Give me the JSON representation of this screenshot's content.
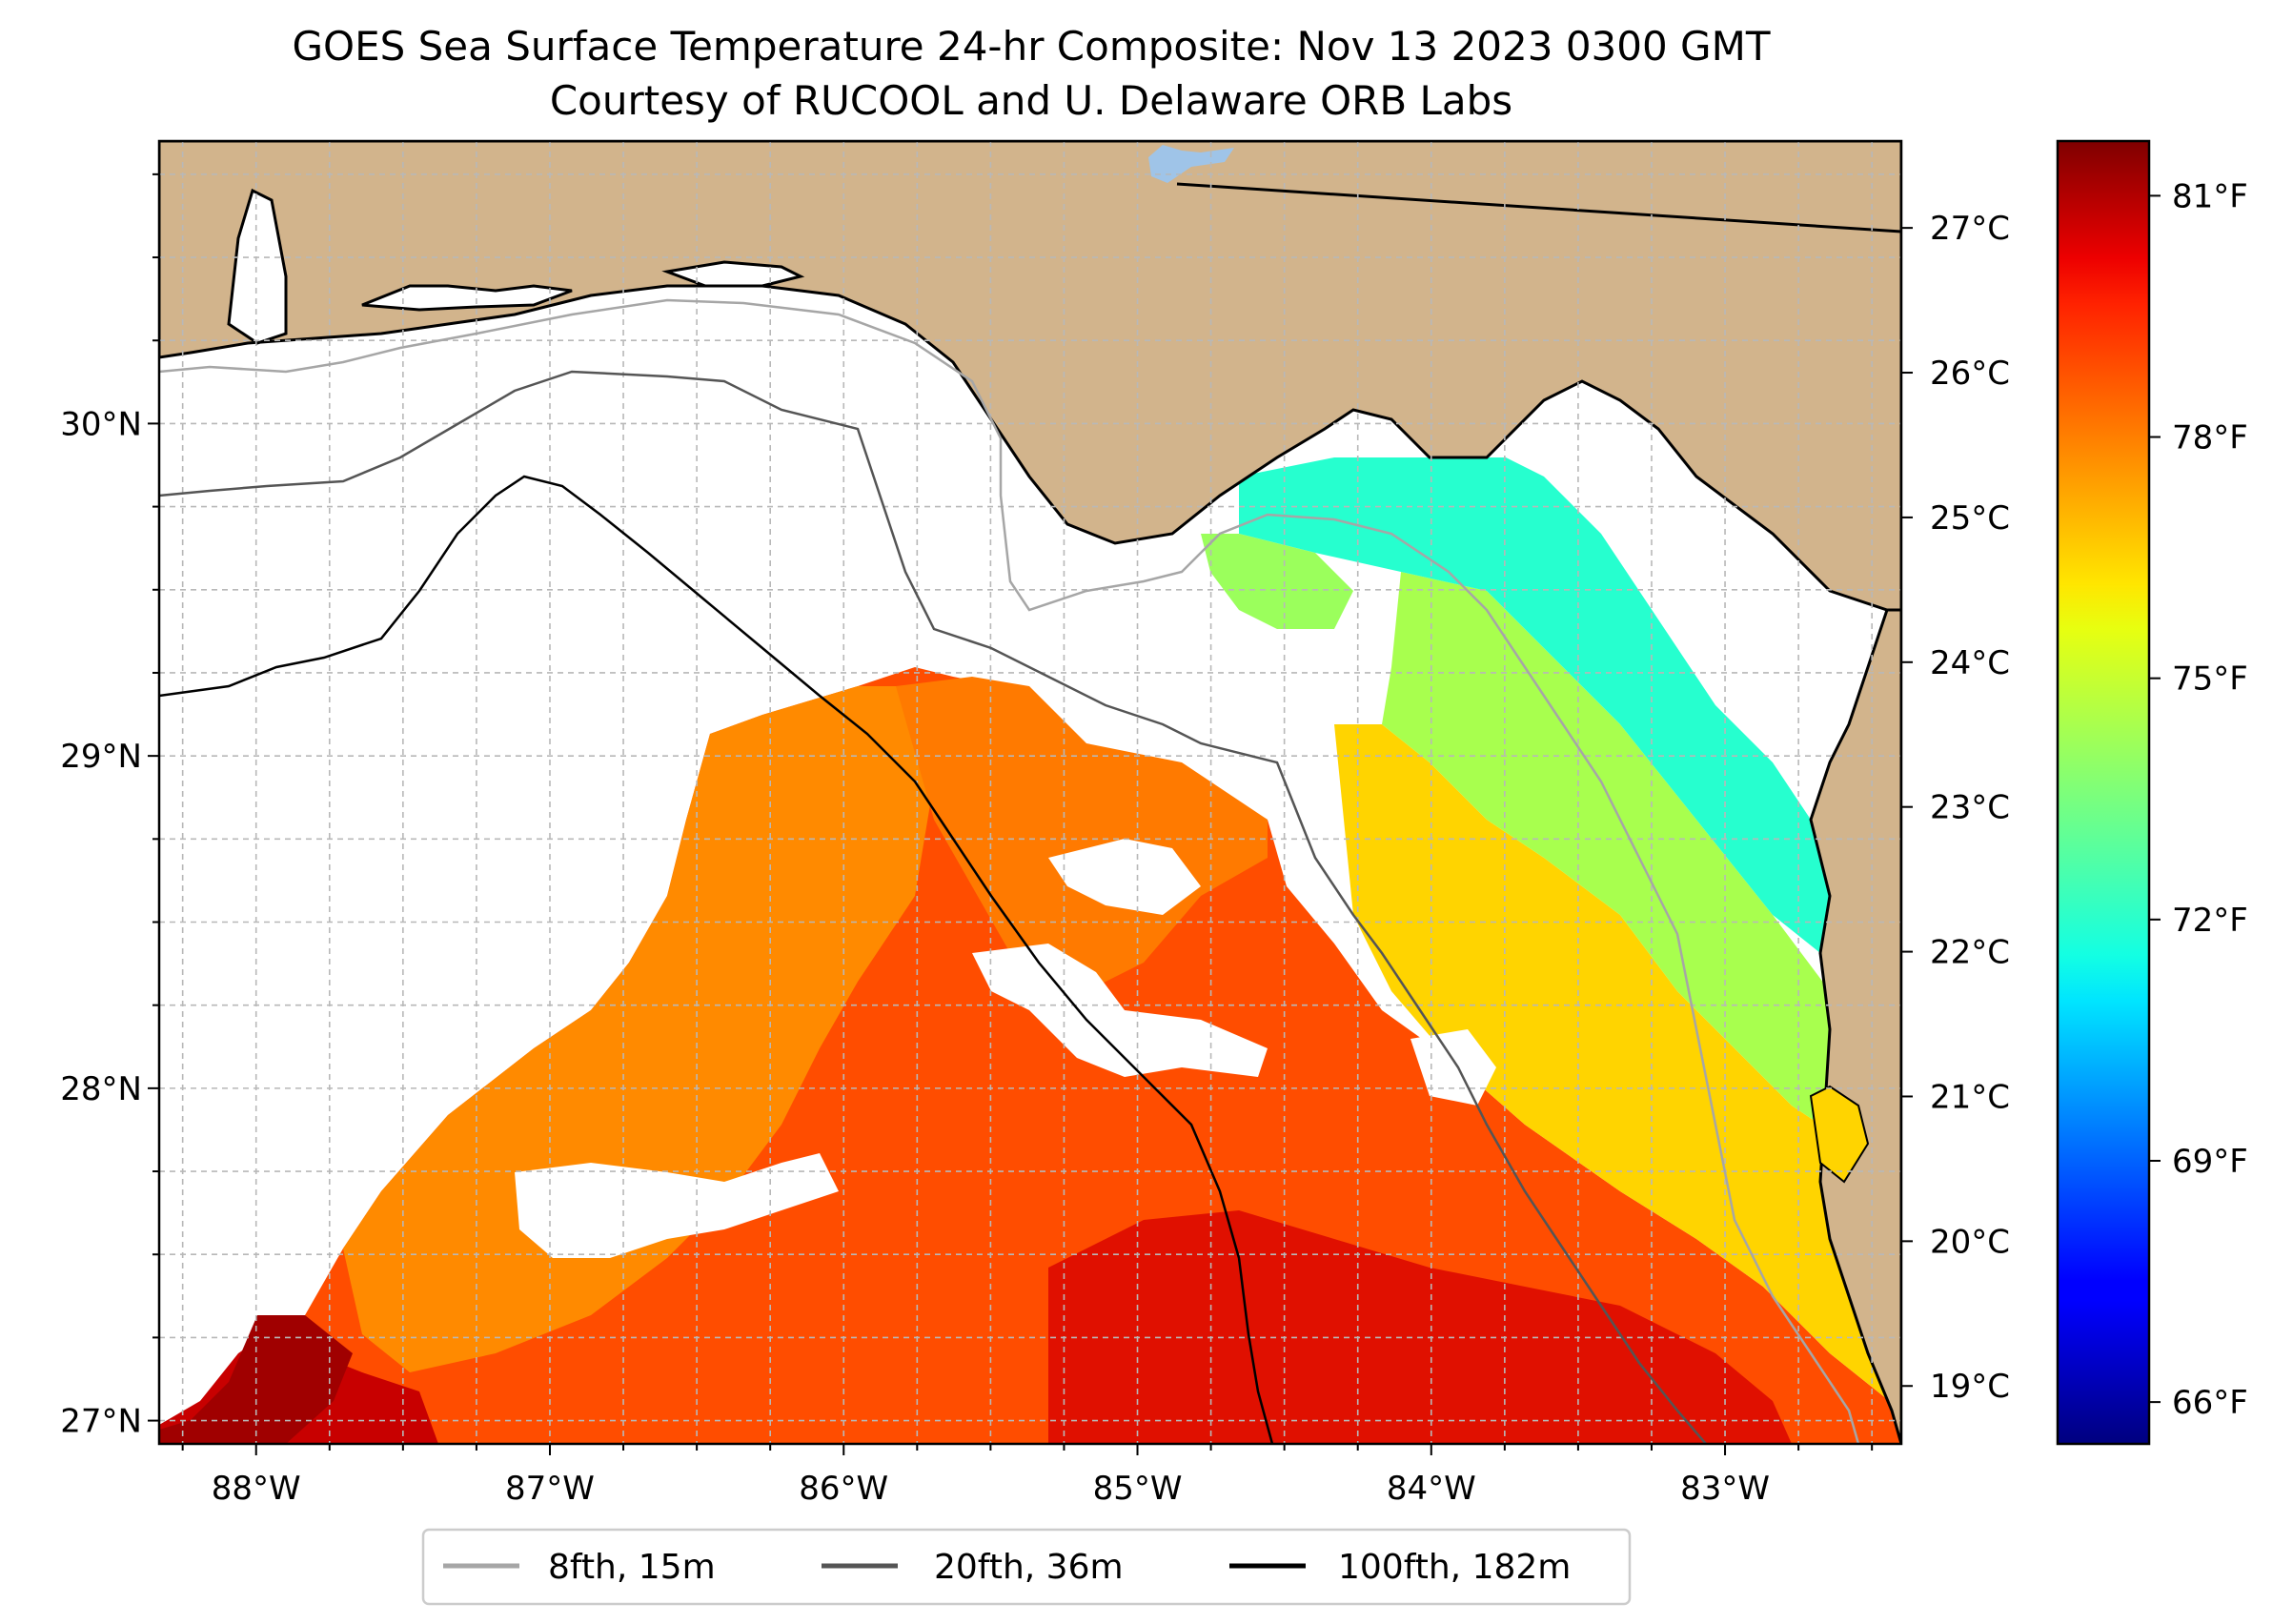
{
  "title": {
    "line1": "GOES Sea Surface Temperature 24-hr Composite: Nov 13 2023 0300 GMT",
    "line2": "Courtesy of RUCOOL and U. Delaware ORB Labs"
  },
  "map": {
    "extent": {
      "lon_min": -88.33,
      "lon_max": -82.4,
      "lat_min": 26.93,
      "lat_max": 30.85
    },
    "lon_ticks": [
      {
        "value": -88,
        "label": "88°W"
      },
      {
        "value": -87,
        "label": "87°W"
      },
      {
        "value": -86,
        "label": "86°W"
      },
      {
        "value": -85,
        "label": "85°W"
      },
      {
        "value": -84,
        "label": "84°W"
      },
      {
        "value": -83,
        "label": "83°W"
      }
    ],
    "lat_ticks": [
      {
        "value": 27,
        "label": "27°N"
      },
      {
        "value": 28,
        "label": "28°N"
      },
      {
        "value": 29,
        "label": "29°N"
      },
      {
        "value": 30,
        "label": "30°N"
      }
    ],
    "gridlines": true,
    "colors": {
      "land": "#d2b48c",
      "no_data": "#ffffff",
      "lake": "#9fc4e8",
      "grid": "#b8b8b8"
    }
  },
  "colorbar": {
    "colormap": "jet",
    "range_c": [
      18.6,
      27.6
    ],
    "celsius_ticks": [
      {
        "value": 19,
        "label": "19°C"
      },
      {
        "value": 20,
        "label": "20°C"
      },
      {
        "value": 21,
        "label": "21°C"
      },
      {
        "value": 22,
        "label": "22°C"
      },
      {
        "value": 23,
        "label": "23°C"
      },
      {
        "value": 24,
        "label": "24°C"
      },
      {
        "value": 25,
        "label": "25°C"
      },
      {
        "value": 26,
        "label": "26°C"
      },
      {
        "value": 27,
        "label": "27°C"
      }
    ],
    "fahrenheit_ticks": [
      {
        "value": 66,
        "label": "66°F"
      },
      {
        "value": 69,
        "label": "69°F"
      },
      {
        "value": 72,
        "label": "72°F"
      },
      {
        "value": 75,
        "label": "75°F"
      },
      {
        "value": 78,
        "label": "78°F"
      },
      {
        "value": 81,
        "label": "81°F"
      }
    ]
  },
  "legend": {
    "placement": "bottom-center",
    "items": [
      {
        "label": "8fth, 15m",
        "color": "#a6a6a6"
      },
      {
        "label": "20fth, 36m",
        "color": "#555555"
      },
      {
        "label": "100fth, 182m",
        "color": "#000000"
      }
    ]
  }
}
